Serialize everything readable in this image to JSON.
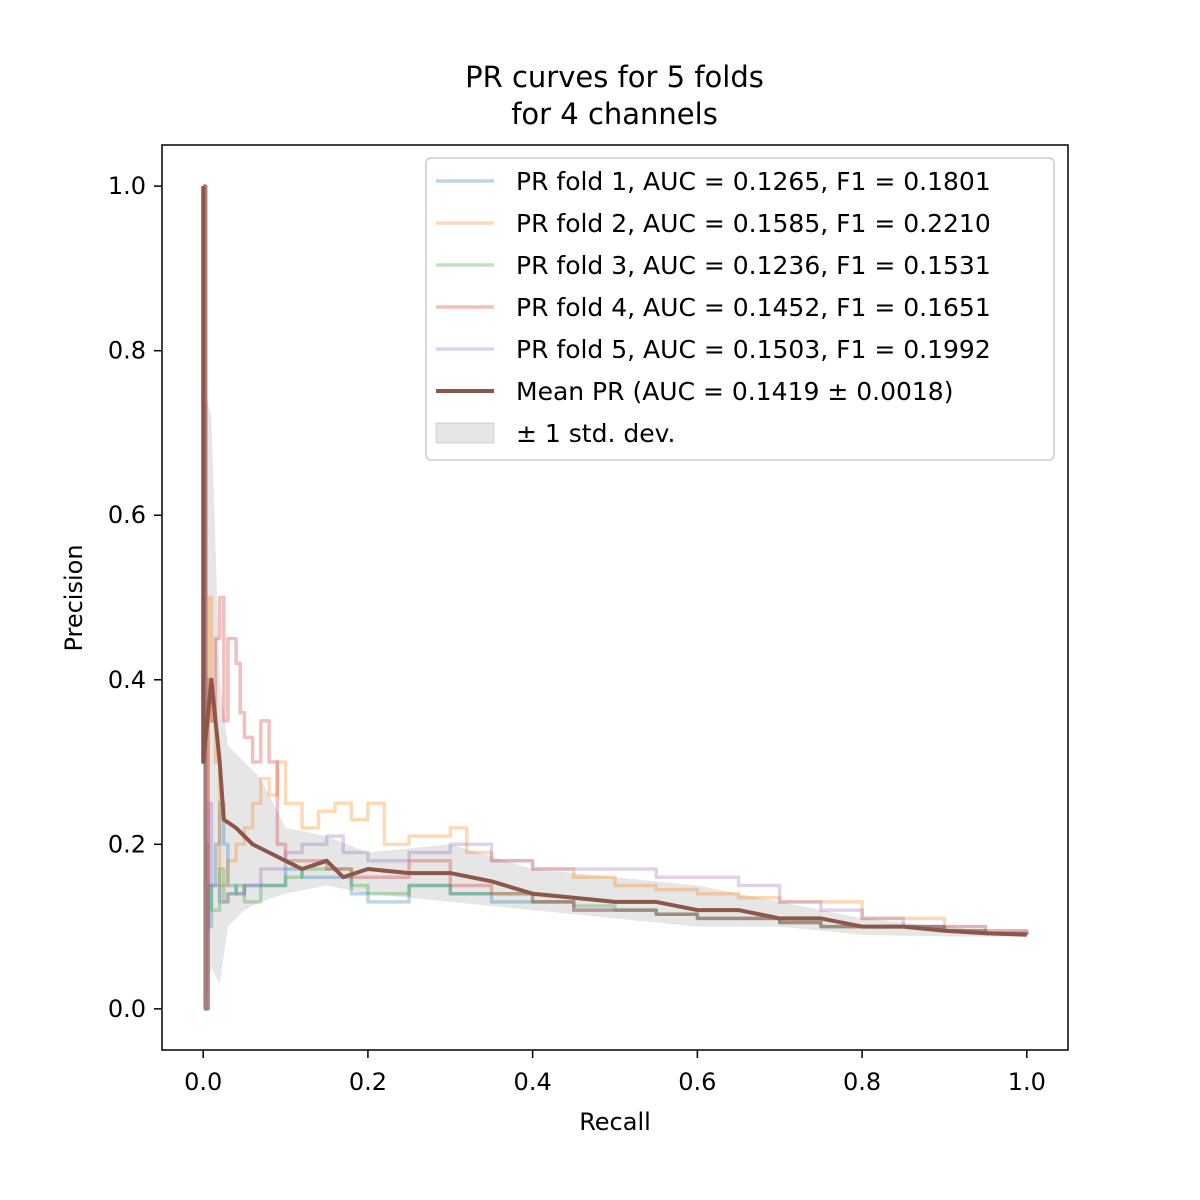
{
  "chart_data": {
    "type": "line",
    "title": [
      "PR curves for 5 folds",
      "for 4 channels"
    ],
    "xlabel": "Recall",
    "ylabel": "Precision",
    "xlim": [
      -0.05,
      1.05
    ],
    "ylim": [
      -0.05,
      1.05
    ],
    "xticks": [
      0.0,
      0.2,
      0.4,
      0.6,
      0.8,
      1.0
    ],
    "xticklabels": [
      "0.0",
      "0.2",
      "0.4",
      "0.6",
      "0.8",
      "1.0"
    ],
    "yticks": [
      0.0,
      0.2,
      0.4,
      0.6,
      0.8,
      1.0
    ],
    "yticklabels": [
      "0.0",
      "0.2",
      "0.4",
      "0.6",
      "0.8",
      "1.0"
    ],
    "grid": false,
    "legend_position": "top-right",
    "series": [
      {
        "name": "PR fold 1, AUC = 0.1265, F1 = 0.1801",
        "color": "#1f77b4",
        "alpha": 0.3,
        "points": [
          [
            0,
            1.0
          ],
          [
            0.002,
            0.0
          ],
          [
            0.004,
            0.2
          ],
          [
            0.006,
            0.1
          ],
          [
            0.01,
            0.15
          ],
          [
            0.015,
            0.2
          ],
          [
            0.02,
            0.25
          ],
          [
            0.025,
            0.2
          ],
          [
            0.03,
            0.15
          ],
          [
            0.04,
            0.14
          ],
          [
            0.05,
            0.15
          ],
          [
            0.07,
            0.15
          ],
          [
            0.1,
            0.17
          ],
          [
            0.12,
            0.16
          ],
          [
            0.15,
            0.16
          ],
          [
            0.18,
            0.14
          ],
          [
            0.2,
            0.13
          ],
          [
            0.25,
            0.15
          ],
          [
            0.3,
            0.14
          ],
          [
            0.35,
            0.13
          ],
          [
            0.4,
            0.13
          ],
          [
            0.45,
            0.12
          ],
          [
            0.5,
            0.12
          ],
          [
            0.55,
            0.115
          ],
          [
            0.6,
            0.11
          ],
          [
            0.65,
            0.11
          ],
          [
            0.7,
            0.105
          ],
          [
            0.75,
            0.1
          ],
          [
            0.8,
            0.1
          ],
          [
            0.85,
            0.1
          ],
          [
            0.9,
            0.095
          ],
          [
            0.95,
            0.092
          ],
          [
            1.0,
            0.09
          ]
        ]
      },
      {
        "name": "PR fold 2, AUC = 0.1585, F1 = 0.2210",
        "color": "#ff7f0e",
        "alpha": 0.3,
        "points": [
          [
            0,
            1.0
          ],
          [
            0.003,
            0.0
          ],
          [
            0.006,
            0.5
          ],
          [
            0.01,
            0.35
          ],
          [
            0.015,
            0.3
          ],
          [
            0.02,
            0.15
          ],
          [
            0.03,
            0.18
          ],
          [
            0.04,
            0.2
          ],
          [
            0.05,
            0.22
          ],
          [
            0.06,
            0.25
          ],
          [
            0.07,
            0.28
          ],
          [
            0.08,
            0.26
          ],
          [
            0.09,
            0.3
          ],
          [
            0.1,
            0.25
          ],
          [
            0.12,
            0.22
          ],
          [
            0.14,
            0.24
          ],
          [
            0.16,
            0.25
          ],
          [
            0.18,
            0.23
          ],
          [
            0.2,
            0.25
          ],
          [
            0.22,
            0.2
          ],
          [
            0.25,
            0.21
          ],
          [
            0.3,
            0.22
          ],
          [
            0.32,
            0.19
          ],
          [
            0.35,
            0.18
          ],
          [
            0.4,
            0.17
          ],
          [
            0.45,
            0.16
          ],
          [
            0.5,
            0.15
          ],
          [
            0.55,
            0.145
          ],
          [
            0.6,
            0.14
          ],
          [
            0.65,
            0.135
          ],
          [
            0.7,
            0.13
          ],
          [
            0.75,
            0.13
          ],
          [
            0.8,
            0.11
          ],
          [
            0.85,
            0.11
          ],
          [
            0.9,
            0.1
          ],
          [
            0.95,
            0.095
          ],
          [
            1.0,
            0.09
          ]
        ]
      },
      {
        "name": "PR fold 3, AUC = 0.1236, F1 = 0.1531",
        "color": "#2ca02c",
        "alpha": 0.3,
        "points": [
          [
            0,
            1.0
          ],
          [
            0.003,
            0.0
          ],
          [
            0.006,
            0.15
          ],
          [
            0.01,
            0.12
          ],
          [
            0.02,
            0.17
          ],
          [
            0.025,
            0.13
          ],
          [
            0.03,
            0.14
          ],
          [
            0.04,
            0.15
          ],
          [
            0.05,
            0.13
          ],
          [
            0.07,
            0.15
          ],
          [
            0.1,
            0.16
          ],
          [
            0.12,
            0.17
          ],
          [
            0.15,
            0.17
          ],
          [
            0.18,
            0.15
          ],
          [
            0.2,
            0.14
          ],
          [
            0.25,
            0.15
          ],
          [
            0.3,
            0.14
          ],
          [
            0.35,
            0.14
          ],
          [
            0.4,
            0.13
          ],
          [
            0.45,
            0.125
          ],
          [
            0.5,
            0.12
          ],
          [
            0.55,
            0.115
          ],
          [
            0.6,
            0.11
          ],
          [
            0.65,
            0.11
          ],
          [
            0.7,
            0.105
          ],
          [
            0.75,
            0.1
          ],
          [
            0.8,
            0.1
          ],
          [
            0.85,
            0.1
          ],
          [
            0.9,
            0.095
          ],
          [
            0.95,
            0.092
          ],
          [
            1.0,
            0.09
          ]
        ]
      },
      {
        "name": "PR fold 4, AUC = 0.1452, F1 = 0.1651",
        "color": "#d62728",
        "alpha": 0.3,
        "points": [
          [
            0,
            1.0
          ],
          [
            0.003,
            0.0
          ],
          [
            0.006,
            0.4
          ],
          [
            0.01,
            0.35
          ],
          [
            0.015,
            0.45
          ],
          [
            0.02,
            0.5
          ],
          [
            0.025,
            0.35
          ],
          [
            0.03,
            0.45
          ],
          [
            0.04,
            0.42
          ],
          [
            0.045,
            0.36
          ],
          [
            0.05,
            0.33
          ],
          [
            0.06,
            0.3
          ],
          [
            0.07,
            0.35
          ],
          [
            0.08,
            0.3
          ],
          [
            0.09,
            0.2
          ],
          [
            0.1,
            0.18
          ],
          [
            0.12,
            0.18
          ],
          [
            0.15,
            0.17
          ],
          [
            0.18,
            0.16
          ],
          [
            0.2,
            0.16
          ],
          [
            0.25,
            0.18
          ],
          [
            0.3,
            0.15
          ],
          [
            0.35,
            0.14
          ],
          [
            0.4,
            0.13
          ],
          [
            0.45,
            0.12
          ],
          [
            0.5,
            0.12
          ],
          [
            0.55,
            0.115
          ],
          [
            0.6,
            0.11
          ],
          [
            0.65,
            0.11
          ],
          [
            0.7,
            0.105
          ],
          [
            0.75,
            0.1
          ],
          [
            0.8,
            0.1
          ],
          [
            0.85,
            0.1
          ],
          [
            0.9,
            0.095
          ],
          [
            0.95,
            0.092
          ],
          [
            1.0,
            0.09
          ]
        ]
      },
      {
        "name": "PR fold 5, AUC = 0.1503, F1 = 0.1992",
        "color": "#9467bd",
        "alpha": 0.3,
        "points": [
          [
            0,
            1.0
          ],
          [
            0.003,
            0.0
          ],
          [
            0.006,
            0.25
          ],
          [
            0.01,
            0.15
          ],
          [
            0.02,
            0.13
          ],
          [
            0.03,
            0.14
          ],
          [
            0.05,
            0.15
          ],
          [
            0.07,
            0.17
          ],
          [
            0.1,
            0.19
          ],
          [
            0.12,
            0.2
          ],
          [
            0.15,
            0.21
          ],
          [
            0.17,
            0.19
          ],
          [
            0.2,
            0.18
          ],
          [
            0.25,
            0.19
          ],
          [
            0.3,
            0.2
          ],
          [
            0.35,
            0.18
          ],
          [
            0.4,
            0.17
          ],
          [
            0.45,
            0.17
          ],
          [
            0.5,
            0.17
          ],
          [
            0.55,
            0.16
          ],
          [
            0.6,
            0.16
          ],
          [
            0.65,
            0.15
          ],
          [
            0.7,
            0.13
          ],
          [
            0.75,
            0.12
          ],
          [
            0.8,
            0.11
          ],
          [
            0.85,
            0.1
          ],
          [
            0.9,
            0.1
          ],
          [
            0.95,
            0.095
          ],
          [
            1.0,
            0.09
          ]
        ]
      },
      {
        "name": "Mean PR (AUC = 0.1419 ± 0.0018)",
        "color": "#8c564b",
        "alpha": 1.0,
        "points": [
          [
            0,
            1.0
          ],
          [
            0.0,
            0.3
          ],
          [
            0.01,
            0.4
          ],
          [
            0.02,
            0.3
          ],
          [
            0.025,
            0.23
          ],
          [
            0.04,
            0.22
          ],
          [
            0.06,
            0.2
          ],
          [
            0.08,
            0.19
          ],
          [
            0.1,
            0.18
          ],
          [
            0.12,
            0.17
          ],
          [
            0.15,
            0.18
          ],
          [
            0.17,
            0.16
          ],
          [
            0.2,
            0.17
          ],
          [
            0.25,
            0.165
          ],
          [
            0.3,
            0.165
          ],
          [
            0.35,
            0.155
          ],
          [
            0.4,
            0.14
          ],
          [
            0.45,
            0.135
          ],
          [
            0.5,
            0.13
          ],
          [
            0.55,
            0.13
          ],
          [
            0.6,
            0.12
          ],
          [
            0.65,
            0.12
          ],
          [
            0.7,
            0.11
          ],
          [
            0.75,
            0.11
          ],
          [
            0.8,
            0.1
          ],
          [
            0.85,
            0.1
          ],
          [
            0.9,
            0.095
          ],
          [
            0.95,
            0.092
          ],
          [
            1.0,
            0.09
          ]
        ]
      }
    ],
    "std_band": {
      "name": "± 1 std. dev.",
      "color": "#808080",
      "alpha": 0.2,
      "x": [
        0.0,
        0.005,
        0.01,
        0.02,
        0.03,
        0.05,
        0.07,
        0.1,
        0.15,
        0.2,
        0.3,
        0.4,
        0.5,
        0.6,
        0.7,
        0.8,
        0.9,
        1.0
      ],
      "upper": [
        0.76,
        0.74,
        0.72,
        0.4,
        0.32,
        0.3,
        0.28,
        0.22,
        0.21,
        0.19,
        0.2,
        0.17,
        0.16,
        0.15,
        0.13,
        0.11,
        0.1,
        0.09
      ],
      "lower": [
        0.0,
        0.02,
        0.05,
        0.03,
        0.1,
        0.12,
        0.13,
        0.14,
        0.15,
        0.14,
        0.13,
        0.12,
        0.11,
        0.1,
        0.1,
        0.09,
        0.088,
        0.088
      ]
    }
  },
  "legend": {
    "std_label": "± 1 std. dev."
  }
}
